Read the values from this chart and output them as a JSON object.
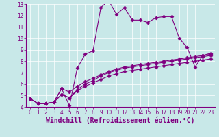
{
  "xlabel": "Windchill (Refroidissement éolien,°C)",
  "background_color": "#c8e8e8",
  "line_color": "#800080",
  "marker": "D",
  "markersize": 2.5,
  "linewidth": 0.8,
  "xlim": [
    -0.5,
    23.5
  ],
  "ylim": [
    4,
    13
  ],
  "xticks": [
    0,
    1,
    2,
    3,
    4,
    5,
    6,
    7,
    8,
    9,
    10,
    11,
    12,
    13,
    14,
    15,
    16,
    17,
    18,
    19,
    20,
    21,
    22,
    23
  ],
  "yticks": [
    4,
    5,
    6,
    7,
    8,
    9,
    10,
    11,
    12,
    13
  ],
  "series": [
    [
      4.7,
      4.3,
      4.3,
      4.4,
      5.6,
      4.1,
      7.4,
      8.6,
      8.9,
      12.7,
      13.3,
      12.1,
      12.7,
      11.6,
      11.6,
      11.4,
      11.8,
      11.9,
      11.9,
      10.0,
      9.2,
      7.5,
      8.5,
      8.7
    ],
    [
      4.7,
      4.3,
      4.3,
      4.4,
      5.6,
      5.3,
      5.8,
      6.2,
      6.5,
      6.8,
      7.1,
      7.3,
      7.5,
      7.6,
      7.7,
      7.8,
      7.9,
      8.0,
      8.1,
      8.2,
      8.3,
      8.4,
      8.5,
      8.6
    ],
    [
      4.7,
      4.3,
      4.3,
      4.4,
      5.1,
      4.8,
      5.5,
      6.0,
      6.3,
      6.7,
      7.0,
      7.2,
      7.4,
      7.5,
      7.6,
      7.7,
      7.8,
      7.9,
      8.0,
      8.1,
      8.2,
      8.3,
      8.4,
      8.5
    ],
    [
      4.7,
      4.3,
      4.3,
      4.4,
      5.1,
      4.8,
      5.4,
      5.8,
      6.1,
      6.4,
      6.7,
      6.9,
      7.1,
      7.2,
      7.3,
      7.4,
      7.5,
      7.6,
      7.7,
      7.8,
      7.9,
      8.0,
      8.1,
      8.2
    ]
  ],
  "tick_fontsize": 5.5,
  "xlabel_fontsize": 7.0,
  "grid_color": "#ffffff",
  "spine_color": "#800080"
}
